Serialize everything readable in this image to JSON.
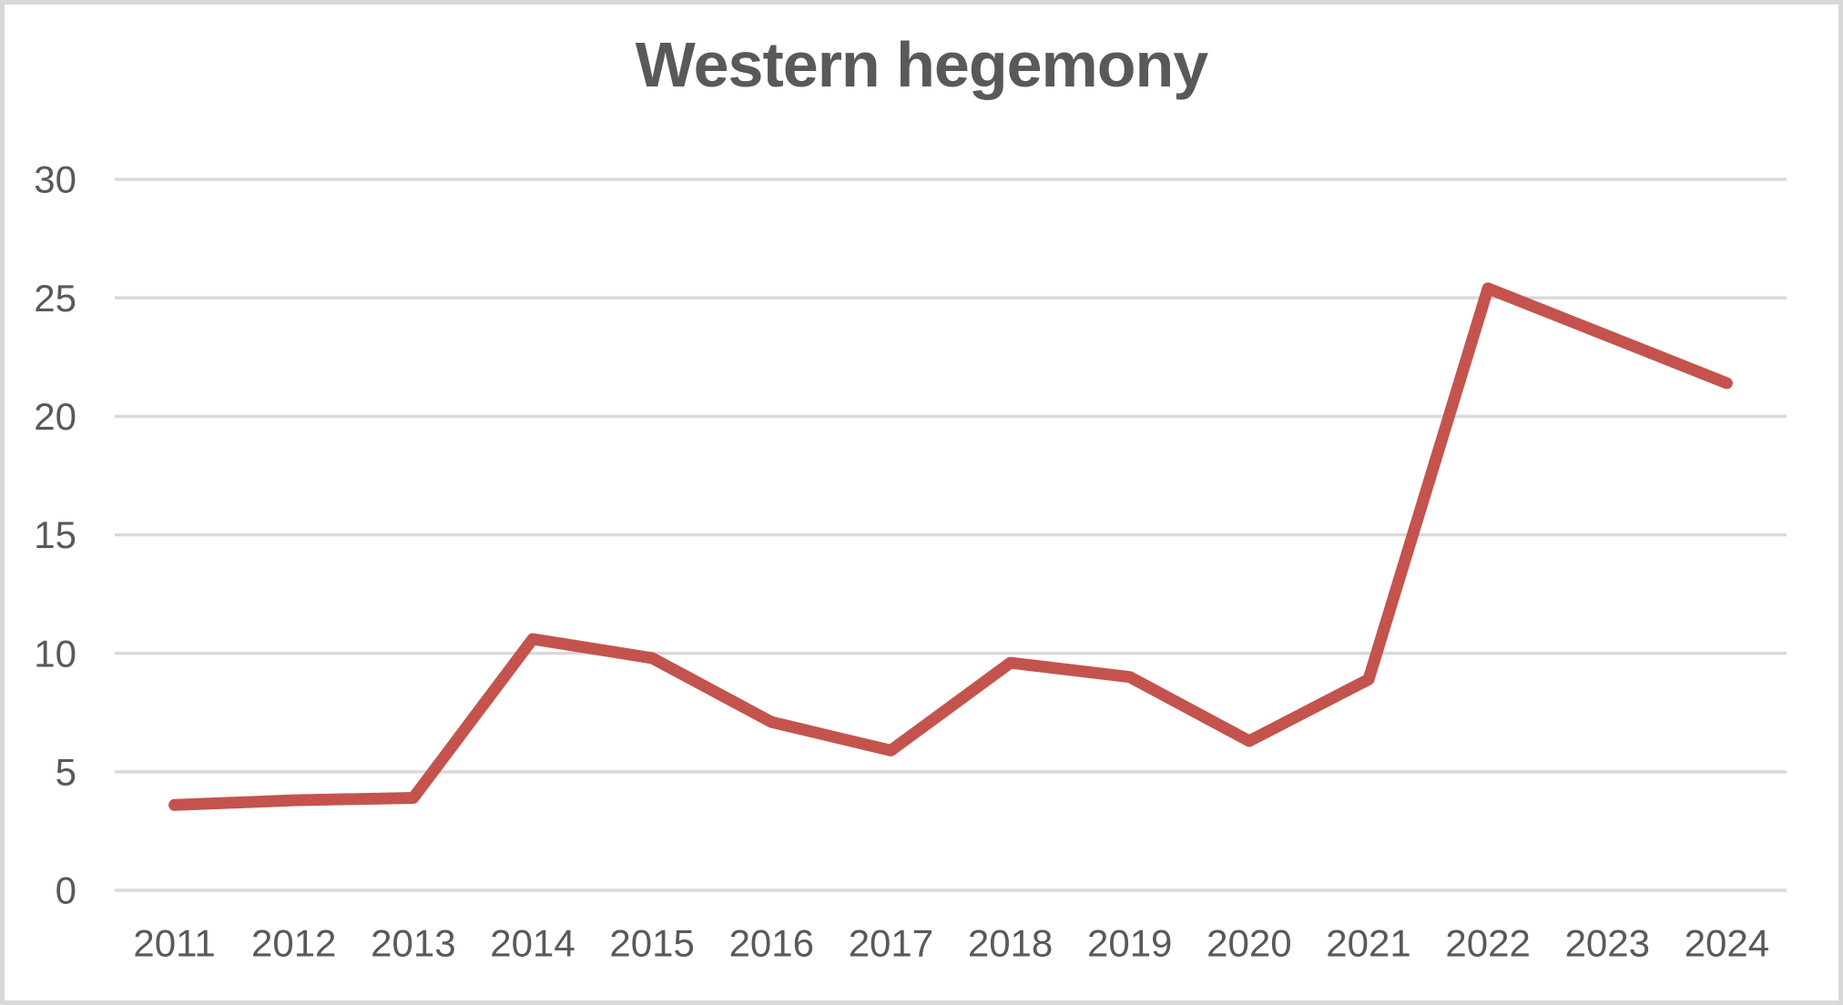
{
  "chart": {
    "title": "Western hegemony",
    "colors": {
      "line": "#C4534E",
      "grid": "#D9D9D9",
      "text": "#595959",
      "frame": "#D8D8D8",
      "background": "#FFFFFF"
    }
  },
  "chart_data": {
    "type": "line",
    "title": "Western hegemony",
    "categories": [
      "2011",
      "2012",
      "2013",
      "2014",
      "2015",
      "2016",
      "2017",
      "2018",
      "2019",
      "2020",
      "2021",
      "2022",
      "2023",
      "2024"
    ],
    "series": [
      {
        "name": "Western hegemony",
        "values": [
          3.6,
          3.8,
          3.9,
          10.6,
          9.8,
          7.1,
          5.9,
          9.6,
          9.0,
          6.3,
          8.9,
          25.4,
          23.4,
          21.4
        ]
      }
    ],
    "xlabel": "",
    "ylabel": "",
    "ylim": [
      0,
      30
    ],
    "yticks": [
      0,
      5,
      10,
      15,
      20,
      25,
      30
    ],
    "grid": true,
    "legend": "none"
  }
}
